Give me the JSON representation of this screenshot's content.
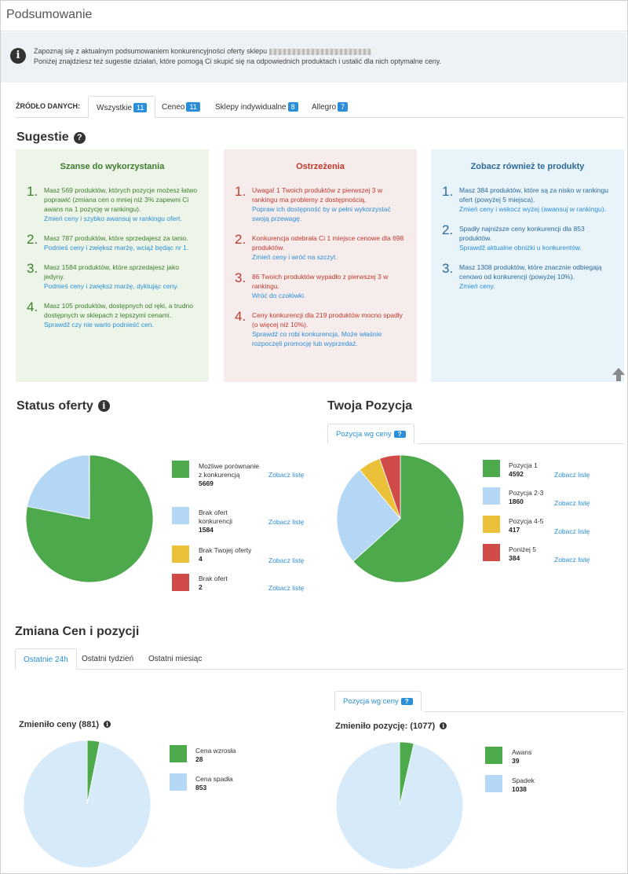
{
  "header": {
    "title": "Podsumowanie"
  },
  "info": {
    "line1_prefix": "Zapoznaj się z aktualnym podsumowaniem konkurencyjności oferty sklepu",
    "line2": "Poniżej znajdziesz też sugestie działań, które pomogą Ci skupić się na odpowiednich produktach i ustalić dla nich optymalne ceny."
  },
  "source": {
    "label": "ŹRÓDŁO DANYCH:",
    "tabs": [
      {
        "label": "Wszystkie",
        "count": "11"
      },
      {
        "label": "Ceneo",
        "count": "11"
      },
      {
        "label": "Sklepy indywidualne",
        "count": "8"
      },
      {
        "label": "Allegro",
        "count": "7"
      }
    ]
  },
  "suggestions": {
    "title": "Sugestie",
    "opportunities": {
      "title": "Szanse do wykorzystania",
      "items": [
        {
          "num": "1.",
          "text": "Masz 569 produktów, których pozycje możesz łatwo poprawić (zmiana cen o mniej niż 3% zapewni Ci awans na 1 pozycję w rankingu).",
          "link": "Zmień ceny i szybko awansuj w rankingu ofert."
        },
        {
          "num": "2.",
          "text": "Masz 787 produktów, które sprzedajesz za tanio.",
          "link": "Podnieś ceny i zwiększ marżę, wciąż będąc nr 1."
        },
        {
          "num": "3.",
          "text": "Masz 1584 produktów, które sprzedajesz jako jedyny.",
          "link": "Podnieś ceny i zwiększ marżę, dyktując ceny."
        },
        {
          "num": "4.",
          "text": "Masz 105 produktów, dostępnych od ręki, a trudno dostępnych w sklepach z lepszymi cenami.",
          "link": "Sprawdź czy nie warto podnieść cen."
        }
      ]
    },
    "warnings": {
      "title": "Ostrzeżenia",
      "items": [
        {
          "num": "1.",
          "text": "Uwaga! 1 Twoich produktów z pierwszej 3 w rankingu ma problemy z dostępnością.",
          "link": "Popraw ich dostępność by w pełni wykorzystać swoją przewagę."
        },
        {
          "num": "2.",
          "text": "Konkurencja odebrała Ci 1 miejsce cenowe dla 698 produktów.",
          "link": "Zmień ceny i wróć na szczyt."
        },
        {
          "num": "3.",
          "text": "86 Twoich produktów wypadło z pierwszej 3 w rankingu.",
          "link": "Wróć do czołówki."
        },
        {
          "num": "4.",
          "text": "Ceny konkurencji dla 219 produktów mocno spadły (o więcej niż 10%).",
          "link": "Sprawdź co robi konkurencja. Może właśnie rozpoczęli promocję lub wyprzedaż."
        }
      ]
    },
    "also": {
      "title": "Zobacz również te produkty",
      "items": [
        {
          "num": "1.",
          "text": "Masz 384 produktów, które są za nisko w rankingu ofert (powyżej 5 miejsca).",
          "link": "Zmień ceny i wskocz wyżej (awansuj w rankingu)."
        },
        {
          "num": "2.",
          "text": "Spadły najniższe ceny konkurencji dla 853 produktów.",
          "link": "Sprawdź aktualne obniżki u konkurentów."
        },
        {
          "num": "3.",
          "text": "Masz 1308 produktów, które znacznie odbiegają cenowo od konkurencji (powyżej 10%).",
          "link": "Zmień ceny."
        }
      ]
    }
  },
  "offer_status": {
    "title": "Status oferty",
    "see_list": "Zobacz listę",
    "items": [
      {
        "label": "Możliwe porównanie z konkurencją",
        "value": "5669",
        "color": "#4caa4c"
      },
      {
        "label": "Brak ofert konkurencji",
        "value": "1584",
        "color": "#b3d7f5"
      },
      {
        "label": "Brak Twojej oferty",
        "value": "4",
        "color": "#ecc13a"
      },
      {
        "label": "Brak ofert",
        "value": "2",
        "color": "#d04a47"
      }
    ]
  },
  "position": {
    "title": "Twoja Pozycja",
    "tab_label": "Pozycja wg ceny",
    "help": "?",
    "see_list": "Zobacz listę",
    "items": [
      {
        "label": "Pozycja 1",
        "value": "4592",
        "color": "#4caa4c"
      },
      {
        "label": "Pozycja 2-3",
        "value": "1860",
        "color": "#b3d7f5"
      },
      {
        "label": "Pozycja 4-5",
        "value": "417",
        "color": "#ecc13a"
      },
      {
        "label": "Poniżej 5",
        "value": "384",
        "color": "#d04a47"
      }
    ]
  },
  "changes": {
    "title": "Zmiana Cen i pozycji",
    "periods": [
      "Ostatnie 24h",
      "Ostatni tydzień",
      "Ostatni miesiąc"
    ],
    "position_tab": "Pozycja wg ceny",
    "help": "?",
    "price": {
      "title": "Zmieniło ceny (881)",
      "items": [
        {
          "label": "Cena wzrosła",
          "value": "28",
          "color": "#4caa4c"
        },
        {
          "label": "Cena spadła",
          "value": "853",
          "color": "#b3d7f5"
        }
      ]
    },
    "pos": {
      "title": "Zmieniło pozycję: (1077)",
      "items": [
        {
          "label": "Awans",
          "value": "39",
          "color": "#4caa4c"
        },
        {
          "label": "Spadek",
          "value": "1038",
          "color": "#b3d7f5"
        }
      ]
    }
  },
  "chart_data": [
    {
      "type": "pie",
      "title": "Status oferty",
      "labels": [
        "Możliwe porównanie z konkurencją",
        "Brak ofert konkurencji",
        "Brak Twojej oferty",
        "Brak ofert"
      ],
      "values": [
        5669,
        1584,
        4,
        2
      ]
    },
    {
      "type": "pie",
      "title": "Twoja Pozycja",
      "labels": [
        "Pozycja 1",
        "Pozycja 2-3",
        "Pozycja 4-5",
        "Poniżej 5"
      ],
      "values": [
        4592,
        1860,
        417,
        384
      ]
    },
    {
      "type": "pie",
      "title": "Zmieniło ceny (881)",
      "labels": [
        "Cena wzrosła",
        "Cena spadła"
      ],
      "values": [
        28,
        853
      ]
    },
    {
      "type": "pie",
      "title": "Zmieniło pozycję: (1077)",
      "labels": [
        "Awans",
        "Spadek"
      ],
      "values": [
        39,
        1038
      ]
    }
  ]
}
